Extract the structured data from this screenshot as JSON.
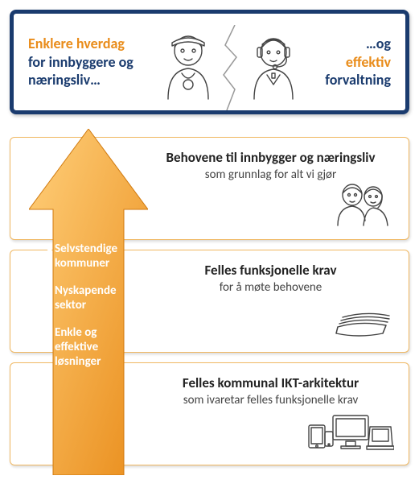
{
  "colors": {
    "top_border": "#1a3b6e",
    "orange": "#e98c1a",
    "navy_text": "#1a3b6e",
    "card_border": "#f0b862",
    "card_title": "#222222",
    "card_sub": "#444444",
    "arrow_fill_light": "#ffcf7a",
    "arrow_fill_dark": "#e98c1a",
    "arrow_text": "#ffffff",
    "bg": "#ffffff"
  },
  "top": {
    "left_line1": "Enklere hverdag",
    "left_line2": "for innbyggere og næringsliv…",
    "right_line1": "…og",
    "right_line2": "effektiv",
    "right_line3": "forvaltning"
  },
  "arrow_bullets": [
    "Selvstendige kommuner",
    "Nyskapende sektor",
    "Enkle og effektive løsninger"
  ],
  "cards": [
    {
      "title": "Behovene til innbygger og næringsliv",
      "sub": "som grunnlag for alt vi gjør"
    },
    {
      "title": "Felles funksjonelle krav",
      "sub": "for å møte behovene"
    },
    {
      "title": "Felles kommunal IKT-arkitektur",
      "sub": "som ivaretar felles funksjonelle krav"
    }
  ]
}
